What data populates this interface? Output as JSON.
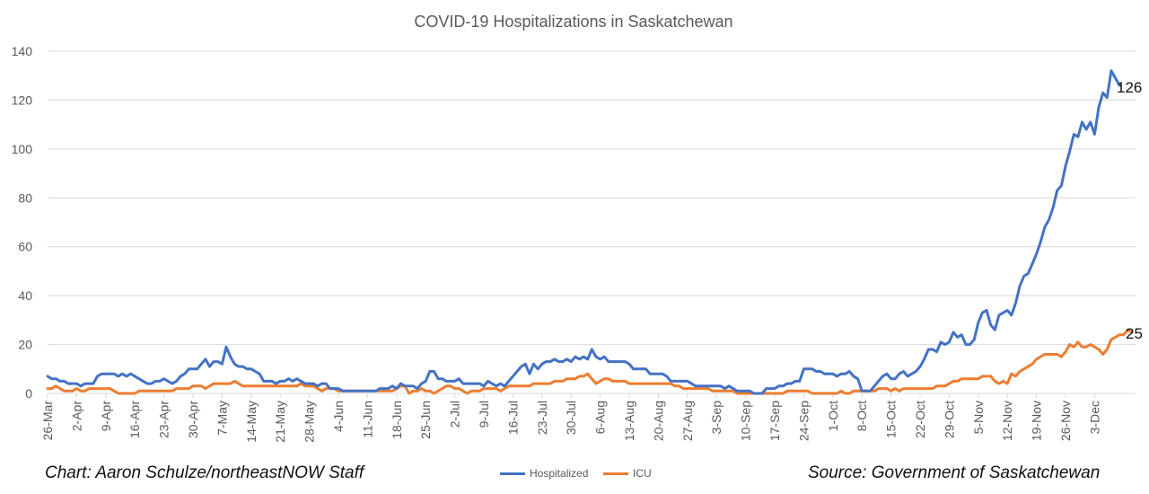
{
  "colors": {
    "hospitalized": "#4472C4",
    "icu": "#ED7D31",
    "grid": "#D9D9D9",
    "text": "#595959"
  },
  "credits": {
    "left": "Chart: Aaron Schulze/northeastNOW Staff",
    "right": "Source: Government of Saskatchewan"
  },
  "end_labels": {
    "hospitalized": "126",
    "icu": "25"
  },
  "chart_data": {
    "type": "line",
    "title": "COVID-19 Hospitalizations in Saskatchewan",
    "xlabel": "",
    "ylabel": "",
    "ylim": [
      0,
      140
    ],
    "yticks": [
      0,
      20,
      40,
      60,
      80,
      100,
      120,
      140
    ],
    "grid": true,
    "legend_position": "bottom",
    "x_start": "26-Mar",
    "x_end": "5-Dec",
    "xtick_labels": [
      "26-Mar",
      "2-Apr",
      "9-Apr",
      "16-Apr",
      "23-Apr",
      "30-Apr",
      "7-May",
      "14-May",
      "21-May",
      "28-May",
      "4-Jun",
      "11-Jun",
      "18-Jun",
      "25-Jun",
      "2-Jul",
      "9-Jul",
      "16-Jul",
      "23-Jul",
      "30-Jul",
      "6-Aug",
      "13-Aug",
      "20-Aug",
      "27-Aug",
      "3-Sep",
      "10-Sep",
      "17-Sep",
      "24-Sep",
      "1-Oct",
      "8-Oct",
      "15-Oct",
      "22-Oct",
      "29-Oct",
      "5-Nov",
      "12-Nov",
      "19-Nov",
      "26-Nov",
      "3-Dec"
    ],
    "series": [
      {
        "name": "Hospitalized",
        "values": [
          7,
          6,
          6,
          5,
          5,
          4,
          4,
          4,
          3,
          4,
          4,
          4,
          7,
          8,
          8,
          8,
          8,
          7,
          8,
          7,
          8,
          7,
          6,
          5,
          4,
          4,
          5,
          5,
          6,
          5,
          4,
          5,
          7,
          8,
          10,
          10,
          10,
          12,
          14,
          11,
          13,
          13,
          12,
          19,
          15,
          12,
          11,
          11,
          10,
          10,
          9,
          8,
          5,
          5,
          5,
          4,
          5,
          5,
          6,
          5,
          6,
          5,
          4,
          4,
          4,
          3,
          4,
          4,
          2,
          2,
          2,
          1,
          1,
          1,
          1,
          1,
          1,
          1,
          1,
          1,
          2,
          2,
          2,
          3,
          2,
          4,
          3,
          3,
          3,
          2,
          4,
          5,
          9,
          9,
          6,
          6,
          5,
          5,
          5,
          6,
          4,
          4,
          4,
          4,
          4,
          3,
          5,
          4,
          3,
          4,
          3,
          5,
          7,
          9,
          11,
          12,
          8,
          12,
          10,
          12,
          13,
          13,
          14,
          13,
          13,
          14,
          13,
          15,
          14,
          15,
          14,
          18,
          15,
          14,
          15,
          13,
          13,
          13,
          13,
          13,
          12,
          10,
          10,
          10,
          10,
          8,
          8,
          8,
          8,
          7,
          5,
          5,
          5,
          5,
          5,
          4,
          3,
          3,
          3,
          3,
          3,
          3,
          3,
          2,
          3,
          2,
          1,
          1,
          1,
          1,
          0,
          0,
          0,
          2,
          2,
          2,
          3,
          3,
          4,
          4,
          5,
          5,
          10,
          10,
          10,
          9,
          9,
          8,
          8,
          8,
          7,
          8,
          8,
          9,
          7,
          6,
          1,
          1,
          1,
          3,
          5,
          7,
          8,
          6,
          6,
          8,
          9,
          7,
          8,
          9,
          11,
          14,
          18,
          18,
          17,
          21,
          20,
          21,
          25,
          23,
          24,
          20,
          20,
          22,
          29,
          33,
          34,
          28,
          26,
          32,
          33,
          34,
          32,
          37,
          44,
          48,
          49,
          53,
          57,
          62,
          68,
          71,
          76,
          83,
          85,
          93,
          99,
          106,
          105,
          111,
          108,
          111,
          106,
          117,
          123,
          121,
          132,
          129,
          126
        ]
      },
      {
        "name": "ICU",
        "values": [
          2,
          2,
          3,
          2,
          1,
          1,
          1,
          2,
          1,
          1,
          2,
          2,
          2,
          2,
          2,
          2,
          1,
          0,
          0,
          0,
          0,
          0,
          1,
          1,
          1,
          1,
          1,
          1,
          1,
          1,
          1,
          2,
          2,
          2,
          2,
          3,
          3,
          3,
          2,
          3,
          4,
          4,
          4,
          4,
          4,
          5,
          4,
          3,
          3,
          3,
          3,
          3,
          3,
          3,
          3,
          3,
          3,
          3,
          3,
          3,
          3,
          4,
          3,
          3,
          3,
          2,
          1,
          2,
          2,
          2,
          1,
          1,
          1,
          1,
          1,
          1,
          1,
          1,
          1,
          1,
          1,
          1,
          1,
          1,
          2,
          3,
          3,
          0,
          1,
          1,
          2,
          1,
          1,
          0,
          1,
          2,
          3,
          3,
          2,
          2,
          1,
          0,
          1,
          1,
          1,
          2,
          2,
          2,
          2,
          1,
          2,
          3,
          3,
          3,
          3,
          3,
          3,
          4,
          4,
          4,
          4,
          4,
          5,
          5,
          5,
          6,
          6,
          6,
          7,
          7,
          8,
          6,
          4,
          5,
          6,
          6,
          5,
          5,
          5,
          5,
          4,
          4,
          4,
          4,
          4,
          4,
          4,
          4,
          4,
          4,
          4,
          3,
          3,
          2,
          2,
          2,
          2,
          2,
          2,
          2,
          1,
          1,
          1,
          1,
          1,
          1,
          0,
          0,
          0,
          0,
          0,
          0,
          0,
          0,
          0,
          0,
          0,
          0,
          1,
          1,
          1,
          1,
          1,
          1,
          0,
          0,
          0,
          0,
          0,
          0,
          0,
          1,
          0,
          0,
          1,
          1,
          1,
          1,
          1,
          1,
          2,
          2,
          2,
          1,
          2,
          1,
          2,
          2,
          2,
          2,
          2,
          2,
          2,
          2,
          3,
          3,
          3,
          4,
          5,
          5,
          6,
          6,
          6,
          6,
          6,
          7,
          7,
          7,
          5,
          4,
          5,
          4,
          8,
          7,
          9,
          10,
          11,
          12,
          14,
          15,
          16,
          16,
          16,
          16,
          15,
          17,
          20,
          19,
          21,
          19,
          19,
          20,
          19,
          18,
          16,
          18,
          22,
          23,
          24,
          24,
          26,
          25
        ]
      }
    ]
  }
}
